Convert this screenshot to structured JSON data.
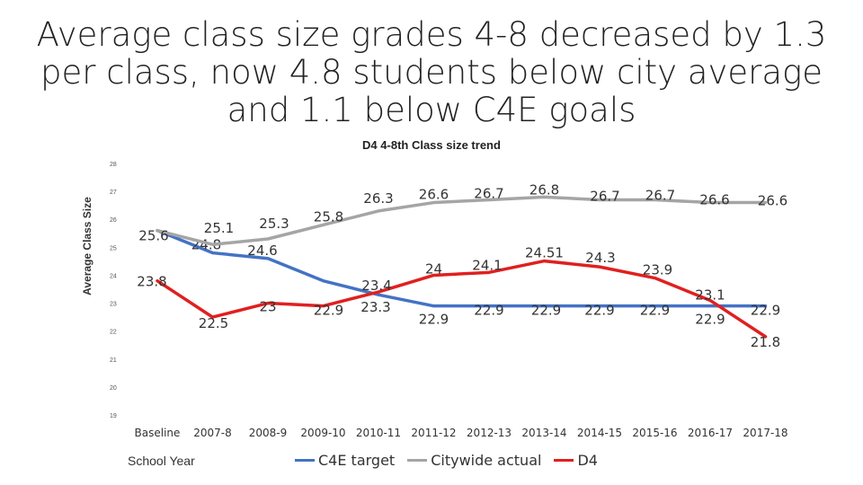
{
  "slide": {
    "title": "Average class size grades 4-8 decreased by 1.3 per class, now 4.8 students below city average and 1.1 below C4E goals"
  },
  "chart_data": {
    "type": "line",
    "title": "D4 4-8th Class size trend",
    "xlabel": "School Year",
    "ylabel": "Average Class Size",
    "ylim": [
      19,
      28
    ],
    "yticks": [
      19,
      20,
      21,
      22,
      23,
      24,
      25,
      26,
      27,
      28
    ],
    "categories": [
      "Baseline",
      "2007-8",
      "2008-9",
      "2009-10",
      "2010-11",
      "2011-12",
      "2012-13",
      "2013-14",
      "2014-15",
      "2015-16",
      "2016-17",
      "2017-18"
    ],
    "legend_position": "bottom",
    "series": [
      {
        "name": "C4E target",
        "color": "#4472C4",
        "values": [
          25.6,
          24.8,
          24.6,
          23.8,
          23.3,
          22.9,
          22.9,
          22.9,
          22.9,
          22.9,
          22.9,
          22.9
        ],
        "labels": [
          "",
          "24.8",
          "24.6",
          "",
          "23.3",
          "22.9",
          "22.9",
          "22.9",
          "22.9",
          "22.9",
          "22.9",
          "22.9"
        ]
      },
      {
        "name": "Citywide actual",
        "color": "#A5A5A5",
        "values": [
          25.6,
          25.1,
          25.3,
          25.8,
          26.3,
          26.6,
          26.7,
          26.8,
          26.7,
          26.7,
          26.6,
          26.6
        ],
        "labels": [
          "25.6",
          "25.1",
          "25.3",
          "25.8",
          "26.3",
          "26.6",
          "26.7",
          "26.8",
          "26.7",
          "26.7",
          "26.6",
          "26.6"
        ]
      },
      {
        "name": "D4",
        "color": "#E02020",
        "values": [
          23.8,
          22.5,
          23,
          22.9,
          23.4,
          24,
          24.1,
          24.51,
          24.3,
          23.9,
          23.1,
          21.8
        ],
        "labels": [
          "23.8",
          "22.5",
          "23",
          "22.9",
          "23.4",
          "24",
          "24.1",
          "24.51",
          "24.3",
          "23.9",
          "23.1",
          "21.8"
        ]
      }
    ]
  }
}
